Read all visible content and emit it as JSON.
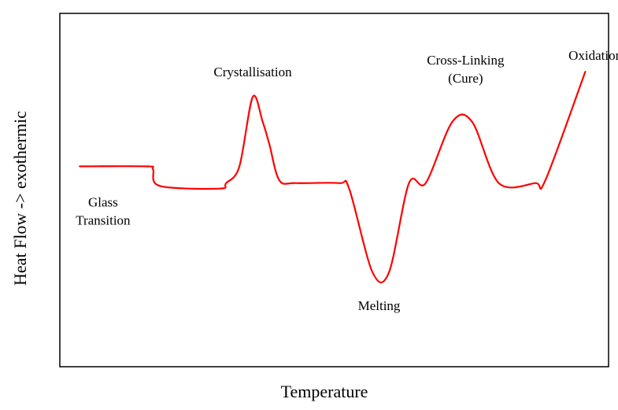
{
  "chart_data": {
    "type": "line",
    "xlabel": "Temperature",
    "ylabel": "Heat Flow -> exothermic",
    "grid": false,
    "series_color": "#ff0000",
    "series": [
      {
        "points": [
          [
            0.0,
            0.5
          ],
          [
            0.2,
            0.5
          ],
          [
            0.22,
            0.49
          ],
          [
            0.24,
            0.43
          ],
          [
            0.42,
            0.42
          ],
          [
            0.44,
            0.44
          ],
          [
            0.48,
            0.5
          ],
          [
            0.52,
            0.75
          ],
          [
            0.55,
            0.66
          ],
          [
            0.57,
            0.58
          ],
          [
            0.6,
            0.45
          ],
          [
            0.65,
            0.44
          ],
          [
            0.78,
            0.44
          ],
          [
            0.81,
            0.42
          ],
          [
            0.88,
            0.12
          ],
          [
            0.93,
            0.12
          ],
          [
            0.99,
            0.44
          ],
          [
            1.04,
            0.44
          ],
          [
            1.12,
            0.66
          ],
          [
            1.18,
            0.66
          ],
          [
            1.26,
            0.44
          ],
          [
            1.37,
            0.44
          ],
          [
            1.4,
            0.45
          ],
          [
            1.52,
            0.84
          ]
        ]
      }
    ],
    "annotations": [
      {
        "lines": [
          "Glass",
          "Transition"
        ],
        "x": 0.07,
        "y": 0.34
      },
      {
        "lines": [
          "Crystallisation"
        ],
        "x": 0.52,
        "y": 0.84
      },
      {
        "lines": [
          "Melting"
        ],
        "x": 0.9,
        "y": 0.0
      },
      {
        "lines": [
          "Cross-Linking",
          "(Cure)"
        ],
        "x": 1.16,
        "y": 0.85
      },
      {
        "lines": [
          "Oxidation"
        ],
        "x": 1.55,
        "y": 0.9
      }
    ],
    "xlim": [
      -0.06,
      1.59
    ],
    "ylim": [
      -0.22,
      1.05
    ]
  }
}
